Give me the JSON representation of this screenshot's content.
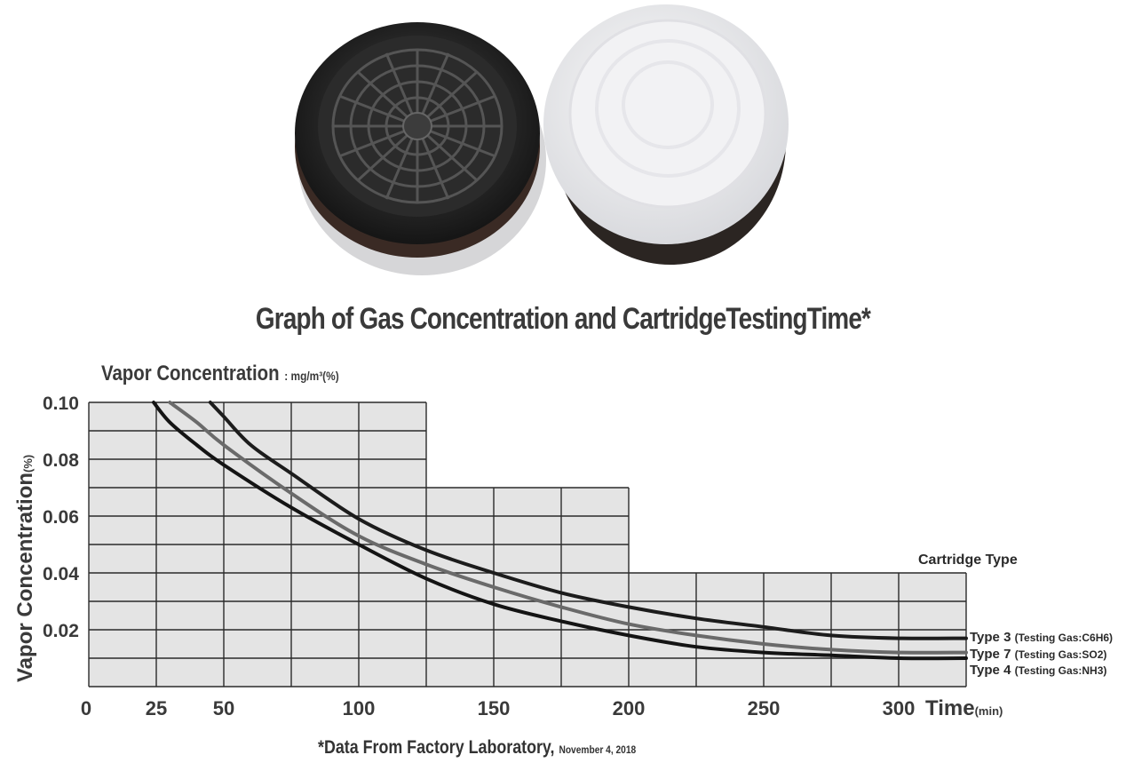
{
  "title": "Graph of Gas Concentration and CartridgeTestingTime*",
  "footnote": {
    "text": "*Data From Factory Laboratory,",
    "date": "November 4, 2018"
  },
  "colors": {
    "type3": "#1c1c1c",
    "type7": "#6a6a6a",
    "type4": "#141414",
    "grid_bg": "#e4e4e4",
    "grid_line": "#2a2a2a"
  },
  "chart_data": {
    "type": "line",
    "top_label": {
      "main": "Vapor Concentration",
      "unit": ": mg/m³(%)"
    },
    "ylabel": "Vapor Concentration",
    "ylabel_unit": "(%)",
    "xlabel": "Time",
    "xlabel_unit": "(min)",
    "y_ticks": [
      "0.10",
      "0.08",
      "0.06",
      "0.04",
      "0.02"
    ],
    "x_ticks": [
      "0",
      "25",
      "50",
      "100",
      "150",
      "200",
      "250",
      "300"
    ],
    "legend_title": "Cartridge Type",
    "legend_position": "right",
    "grid": true,
    "series": [
      {
        "name": "Type 3",
        "gas": "(Testing Gas:C6H6)",
        "points": [
          [
            45,
            0.1
          ],
          [
            50,
            0.095
          ],
          [
            60,
            0.085
          ],
          [
            75,
            0.075
          ],
          [
            100,
            0.059
          ],
          [
            125,
            0.048
          ],
          [
            150,
            0.04
          ],
          [
            175,
            0.033
          ],
          [
            200,
            0.028
          ],
          [
            225,
            0.024
          ],
          [
            250,
            0.021
          ],
          [
            275,
            0.018
          ],
          [
            300,
            0.017
          ],
          [
            325,
            0.017
          ]
        ]
      },
      {
        "name": "Type 7",
        "gas": "(Testing Gas:SO2)",
        "points": [
          [
            30,
            0.1
          ],
          [
            40,
            0.093
          ],
          [
            50,
            0.085
          ],
          [
            75,
            0.068
          ],
          [
            100,
            0.053
          ],
          [
            125,
            0.043
          ],
          [
            150,
            0.035
          ],
          [
            175,
            0.028
          ],
          [
            200,
            0.022
          ],
          [
            225,
            0.018
          ],
          [
            250,
            0.015
          ],
          [
            275,
            0.013
          ],
          [
            300,
            0.012
          ],
          [
            325,
            0.012
          ]
        ]
      },
      {
        "name": "Type 4",
        "gas": "(Testing Gas:NH3)",
        "points": [
          [
            24,
            0.1
          ],
          [
            30,
            0.093
          ],
          [
            40,
            0.085
          ],
          [
            50,
            0.078
          ],
          [
            75,
            0.063
          ],
          [
            100,
            0.05
          ],
          [
            125,
            0.038
          ],
          [
            150,
            0.029
          ],
          [
            175,
            0.023
          ],
          [
            200,
            0.018
          ],
          [
            225,
            0.014
          ],
          [
            250,
            0.012
          ],
          [
            275,
            0.011
          ],
          [
            300,
            0.01
          ],
          [
            325,
            0.01
          ]
        ]
      }
    ]
  }
}
